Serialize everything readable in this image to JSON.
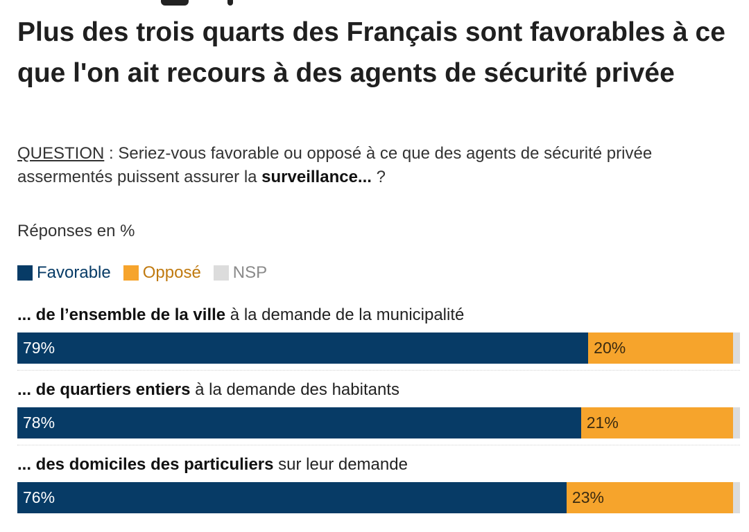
{
  "title": "Plus des trois quarts des Français sont favorables à ce que l'on ait recours à des agents de sécurité privée",
  "question": {
    "label": "QUESTION",
    "text_before": " : Seriez-vous favorable ou opposé à ce que des agents de sécurité privée assermentés puissent assurer la ",
    "text_bold": "surveillance...",
    "text_after": " ?"
  },
  "unit_label": "Réponses en %",
  "colors": {
    "favorable": "#073b66",
    "oppose": "#f6a42c",
    "nsp": "#dcdcdc",
    "favorable_text": "#ffffff",
    "oppose_text": "#3a2a10"
  },
  "chart_data": {
    "type": "bar",
    "orientation": "horizontal",
    "stacked": true,
    "title": "Plus des trois quarts des Français sont favorables à ce que l'on ait recours à des agents de sécurité privée",
    "unit": "%",
    "xlim": [
      0,
      100
    ],
    "legend": "top-left",
    "categories": [
      {
        "bold": "... de l’ensemble de la ville",
        "rest": " à la demande de la municipalité"
      },
      {
        "bold": "... de quartiers entiers",
        "rest": " à la demande des habitants"
      },
      {
        "bold": "... des domiciles des particuliers",
        "rest": " sur leur demande"
      }
    ],
    "series": [
      {
        "key": "favorable",
        "name": "Favorable",
        "values": [
          79,
          78,
          76
        ],
        "labels": [
          "79%",
          "78%",
          "76%"
        ]
      },
      {
        "key": "oppose",
        "name": "Opposé",
        "values": [
          20,
          21,
          23
        ],
        "labels": [
          "20%",
          "21%",
          "23%"
        ]
      },
      {
        "key": "nsp",
        "name": "NSP",
        "values": [
          1,
          1,
          1
        ],
        "labels": [
          "",
          "",
          ""
        ]
      }
    ]
  }
}
